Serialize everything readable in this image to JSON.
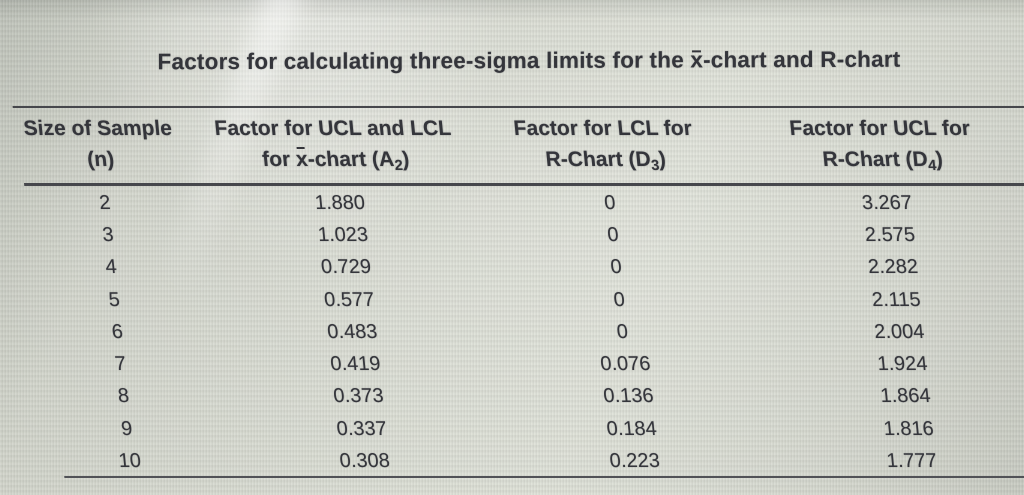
{
  "title": {
    "pre": "Factors for calculating three-sigma limits for the ",
    "xbar": "x",
    "post": "-chart and R-chart"
  },
  "table": {
    "headers": {
      "col1": {
        "line1": "Size of Sample",
        "line2": "(n)"
      },
      "col2": {
        "line1": "Factor for UCL and LCL",
        "line2_pre": "for ",
        "xbar": "x",
        "line2_mid": "-chart (A",
        "sub": "2",
        "line2_end": ")"
      },
      "col3": {
        "line1": "Factor for LCL for",
        "line2_pre": "R-Chart (D",
        "sub": "3",
        "line2_end": ")"
      },
      "col4": {
        "line1": "Factor for UCL for",
        "line2_pre": "R-Chart (D",
        "sub": "4",
        "line2_end": ")"
      }
    },
    "rows": [
      {
        "n": "2",
        "a2": "1.880",
        "d3": "0",
        "d4": "3.267"
      },
      {
        "n": "3",
        "a2": "1.023",
        "d3": "0",
        "d4": "2.575"
      },
      {
        "n": "4",
        "a2": "0.729",
        "d3": "0",
        "d4": "2.282"
      },
      {
        "n": "5",
        "a2": "0.577",
        "d3": "0",
        "d4": "2.115"
      },
      {
        "n": "6",
        "a2": "0.483",
        "d3": "0",
        "d4": "2.004"
      },
      {
        "n": "7",
        "a2": "0.419",
        "d3": "0.076",
        "d4": "1.924"
      },
      {
        "n": "8",
        "a2": "0.373",
        "d3": "0.136",
        "d4": "1.864"
      },
      {
        "n": "9",
        "a2": "0.337",
        "d3": "0.184",
        "d4": "1.816"
      },
      {
        "n": "10",
        "a2": "0.308",
        "d3": "0.223",
        "d4": "1.777"
      }
    ]
  },
  "colors": {
    "background": "#d7dacf",
    "ink": "#34353b",
    "rule": "#46474c"
  }
}
